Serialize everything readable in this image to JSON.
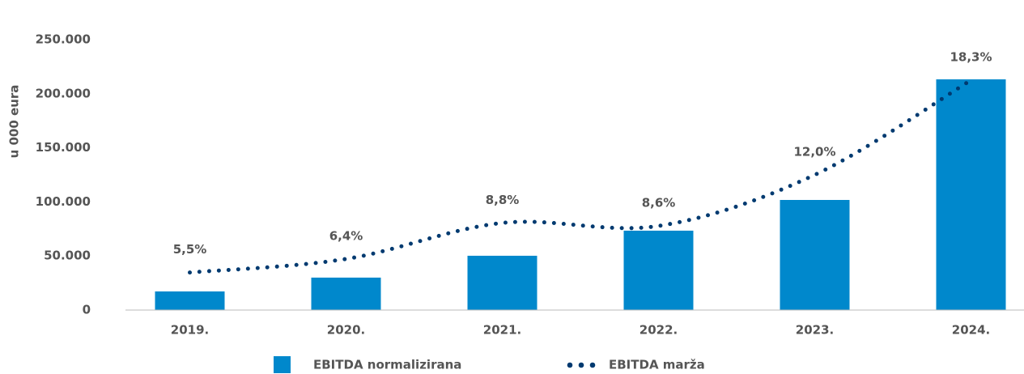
{
  "chart_data": {
    "type": "bar_line",
    "y_axis_label": "u 000 eura",
    "categories": [
      "2019.",
      "2020.",
      "2021.",
      "2022.",
      "2023.",
      "2024."
    ],
    "series": [
      {
        "name": "EBITDA normalizirana",
        "type": "bar",
        "color": "#0088cc",
        "values": [
          17200,
          30000,
          50200,
          73400,
          101800,
          213300
        ]
      },
      {
        "name": "EBITDA marža",
        "type": "line",
        "axis": "y2",
        "color": "#003a70",
        "values": [
          5.5,
          6.4,
          8.8,
          8.6,
          12.0,
          18.3
        ],
        "value_labels": [
          "5,5%",
          "6,4%",
          "8,8%",
          "8,6%",
          "12,0%",
          "18,3%"
        ]
      }
    ],
    "ylim": [
      0,
      250000
    ],
    "yticks": [
      0,
      {
        "value": 50000,
        "label": "50.000"
      },
      {
        "value": 100000,
        "label": "100.000"
      },
      {
        "value": 150000,
        "label": "150.000"
      },
      {
        "value": 200000,
        "label": "200.000"
      },
      {
        "value": 250000,
        "label": "250.000"
      }
    ],
    "y2lim": [
      3,
      21
    ],
    "legend": "bottom"
  }
}
